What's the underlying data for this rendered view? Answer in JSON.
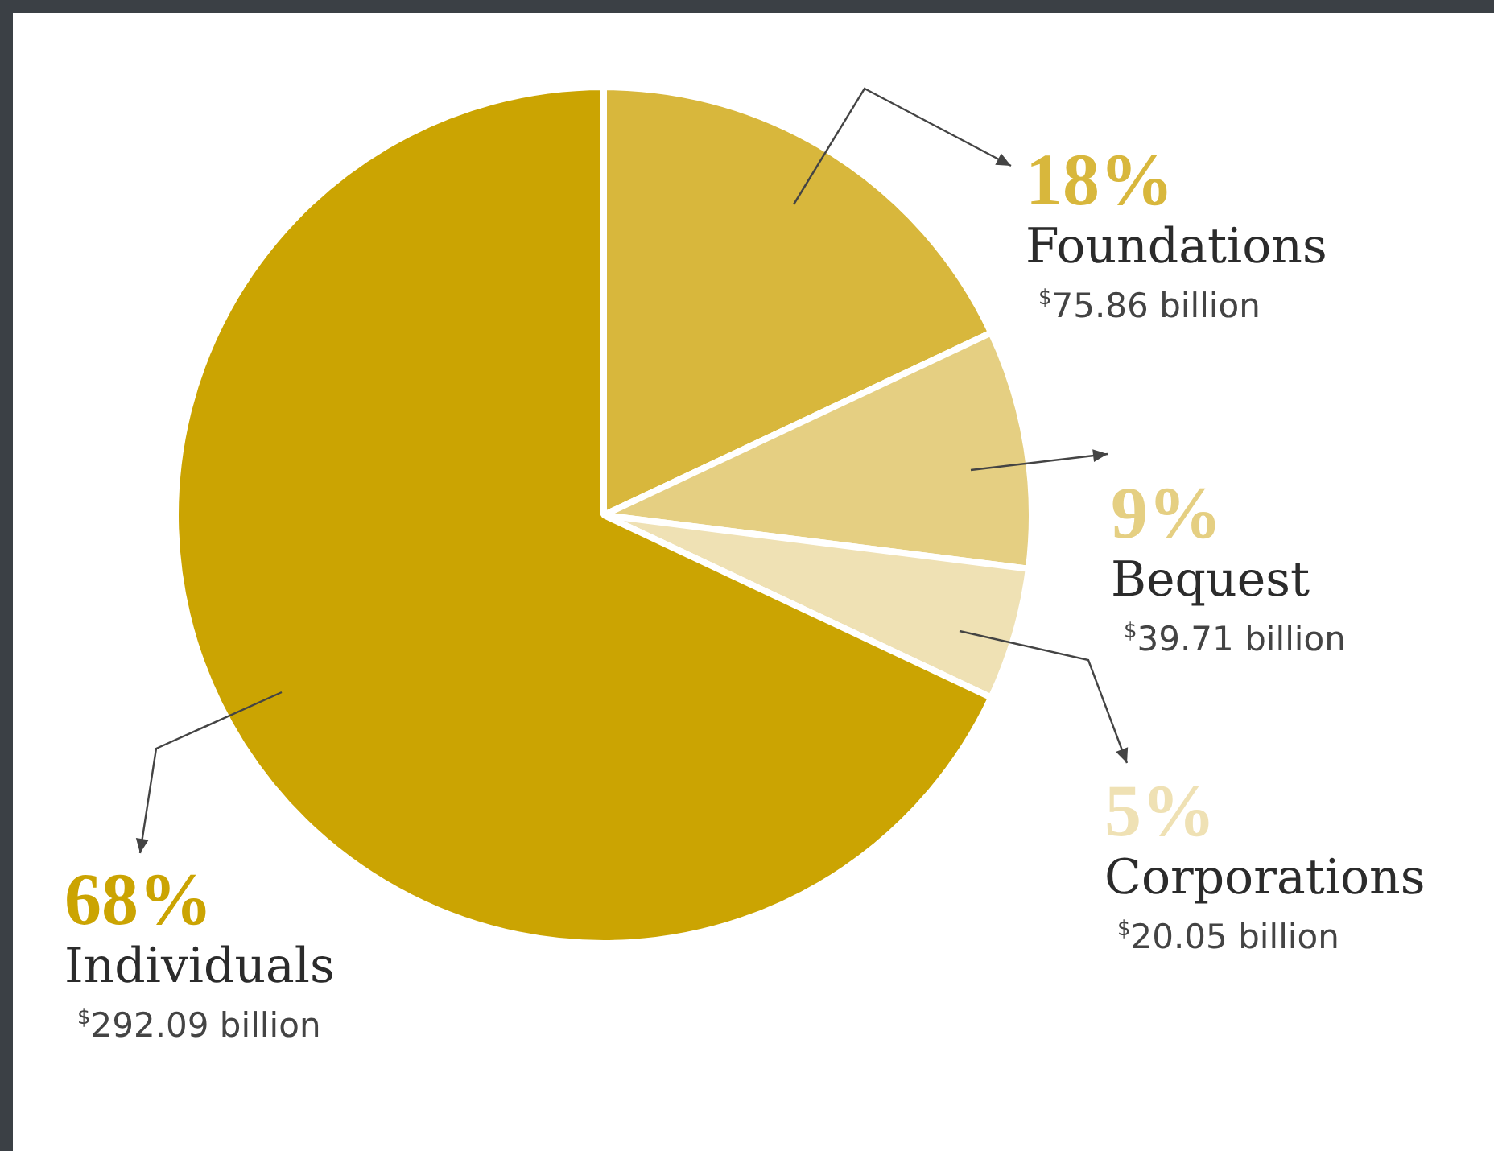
{
  "chart_data": {
    "type": "pie",
    "categories": [
      "Foundations",
      "Bequest",
      "Corporations",
      "Individuals"
    ],
    "values": [
      18,
      9,
      5,
      68
    ],
    "colors": [
      "#d8b73c",
      "#e5cf82",
      "#efe1b4",
      "#cba402"
    ],
    "value_labels": [
      "18%",
      "9%",
      "5%",
      "68%"
    ],
    "annotations": [
      "$^{$}$75.86 billion",
      "$^{$}$39.71 billion",
      "$^{$}$20.05 billion",
      "$^{$}$292.09 billion"
    ],
    "legend": false
  }
}
